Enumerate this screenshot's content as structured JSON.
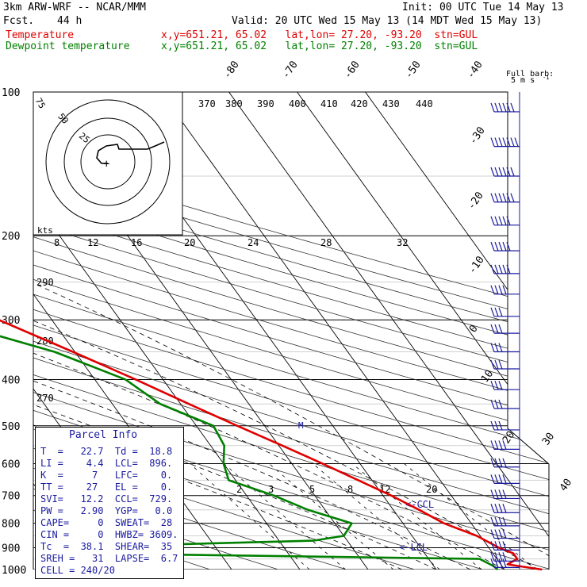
{
  "header": {
    "model": "3km ARW-WRF -- NCAR/MMM",
    "init": "Init: 00 UTC Tue 14 May 13",
    "fcst_label": "Fcst.",
    "fcst_value": "44 h",
    "valid": "Valid: 20 UTC Wed 15 May 13 (14 MDT Wed 15 May 13)",
    "temp_label": "Temperature",
    "temp_info": "x,y=651.21, 65.02   lat,lon= 27.20, -93.20  stn=GUL",
    "dew_label": "Dewpoint temperature",
    "dew_info": "x,y=651.21, 65.02   lat,lon= 27.20, -93.20  stn=GUL"
  },
  "colors": {
    "temperature": "#e00000",
    "dewpoint": "#008000",
    "parcel_text": "#1a1aa0",
    "barb": "#1a1aa0"
  },
  "chart_data": {
    "type": "line",
    "y_axis": "pressure (hPa), log scale",
    "x_axis": "skewed temperature (C)",
    "pressure_labels": [
      100,
      200,
      300,
      400,
      500,
      600,
      700,
      800,
      900,
      1000
    ],
    "temperature_labels": [
      "-80",
      "-70",
      "-60",
      "-50",
      "-40",
      "-30",
      "-20",
      "-10",
      "0",
      "10",
      "20",
      "30",
      "40"
    ],
    "theta_labels": [
      "370",
      "380",
      "390",
      "400",
      "410",
      "420",
      "430",
      "440"
    ],
    "mixing_ratio_labels": [
      "2",
      "3",
      "5",
      "8",
      "12",
      "20"
    ],
    "side_labels": [
      "290",
      "280",
      "270"
    ],
    "mark_labels": {
      "ccl": "<-CCL",
      "lcl": "<-LCL",
      "m": "M"
    },
    "barb_caption": {
      "line1": "Full barb:",
      "line2": "5 m s",
      "exp": "-1"
    },
    "series": [
      {
        "name": "Temperature",
        "points": [
          [
            1000,
            25.5
          ],
          [
            985,
            22.7
          ],
          [
            975,
            21.0
          ],
          [
            950,
            23.0
          ],
          [
            925,
            23.0
          ],
          [
            900,
            21.5
          ],
          [
            850,
            19.5
          ],
          [
            800,
            16.0
          ],
          [
            750,
            13.8
          ],
          [
            700,
            11.2
          ],
          [
            650,
            8.0
          ],
          [
            600,
            4.5
          ],
          [
            550,
            0.5
          ],
          [
            500,
            -4.0
          ],
          [
            450,
            -8.8
          ],
          [
            400,
            -14.0
          ],
          [
            350,
            -20.3
          ],
          [
            300,
            -27.8
          ],
          [
            250,
            -36.5
          ],
          [
            200,
            -46.0
          ],
          [
            175,
            -51.5
          ],
          [
            150,
            -57.5
          ],
          [
            125,
            -63.5
          ],
          [
            110,
            -66.5
          ],
          [
            100,
            -68.5
          ]
        ]
      },
      {
        "name": "Dewpoint temperature",
        "points": [
          [
            1000,
            19.0
          ],
          [
            985,
            18.8
          ],
          [
            950,
            17.5
          ],
          [
            925,
            -40.0
          ],
          [
            900,
            -45.0
          ],
          [
            870,
            -5.0
          ],
          [
            850,
            0.0
          ],
          [
            800,
            2.5
          ],
          [
            750,
            -2.5
          ],
          [
            700,
            -6.0
          ],
          [
            650,
            -11.0
          ],
          [
            600,
            -10.0
          ],
          [
            550,
            -8.0
          ],
          [
            500,
            -7.5
          ],
          [
            450,
            -13.0
          ],
          [
            400,
            -15.5
          ],
          [
            350,
            -23.0
          ],
          [
            300,
            -36.0
          ],
          [
            250,
            -49.0
          ],
          [
            210,
            -59.0
          ],
          [
            200,
            -61.0
          ],
          [
            175,
            -70.0
          ],
          [
            150,
            -75.0
          ],
          [
            125,
            -80.0
          ],
          [
            110,
            -78.0
          ],
          [
            100,
            -77.5
          ]
        ]
      }
    ]
  },
  "hodograph": {
    "ring_labels": [
      "75",
      "50",
      "25"
    ],
    "unit_label": "kts",
    "speed_labels": [
      "8",
      "12",
      "16",
      "20",
      "24",
      "28",
      "32"
    ]
  },
  "parcel_info": {
    "title": "Parcel Info",
    "rows": [
      "T  =   22.7  Td =  18.8",
      "LI =    4.4  LCL=  896.",
      "K  =     7   LFC=    0.",
      "TT =    27   EL =    0.",
      "SVI=   12.2  CCL=  729.",
      "PW =   2.90  YGP=   0.0",
      "CAPE=     0  SWEAT=  28",
      "CIN =     0  HWBZ= 3609.",
      "Tc  =  38.1  SHEAR=  35",
      "SREH =   31  LAPSE=  6.7",
      "CELL = 240/20"
    ]
  },
  "winds": [
    {
      "p": 110,
      "ff": 6,
      "dir": 265
    },
    {
      "p": 130,
      "ff": 7,
      "dir": 265
    },
    {
      "p": 150,
      "ff": 6,
      "dir": 265
    },
    {
      "p": 170,
      "ff": 6,
      "dir": 265
    },
    {
      "p": 190,
      "ff": 5,
      "dir": 265
    },
    {
      "p": 215,
      "ff": 5,
      "dir": 265
    },
    {
      "p": 240,
      "ff": 5,
      "dir": 265
    },
    {
      "p": 265,
      "ff": 4,
      "dir": 260
    },
    {
      "p": 295,
      "ff": 3,
      "dir": 255
    },
    {
      "p": 320,
      "ff": 3,
      "dir": 250
    },
    {
      "p": 350,
      "ff": 3,
      "dir": 245
    },
    {
      "p": 380,
      "ff": 3,
      "dir": 240
    },
    {
      "p": 420,
      "ff": 3,
      "dir": 235
    },
    {
      "p": 460,
      "ff": 3,
      "dir": 230
    },
    {
      "p": 510,
      "ff": 3,
      "dir": 225
    },
    {
      "p": 560,
      "ff": 4,
      "dir": 220
    },
    {
      "p": 610,
      "ff": 4,
      "dir": 215
    },
    {
      "p": 660,
      "ff": 4,
      "dir": 210
    },
    {
      "p": 710,
      "ff": 4,
      "dir": 205
    },
    {
      "p": 760,
      "ff": 4,
      "dir": 200
    },
    {
      "p": 810,
      "ff": 4,
      "dir": 200
    },
    {
      "p": 860,
      "ff": 4,
      "dir": 195
    },
    {
      "p": 910,
      "ff": 4,
      "dir": 190
    },
    {
      "p": 960,
      "ff": 4,
      "dir": 190
    },
    {
      "p": 990,
      "ff": 4,
      "dir": 185
    }
  ]
}
